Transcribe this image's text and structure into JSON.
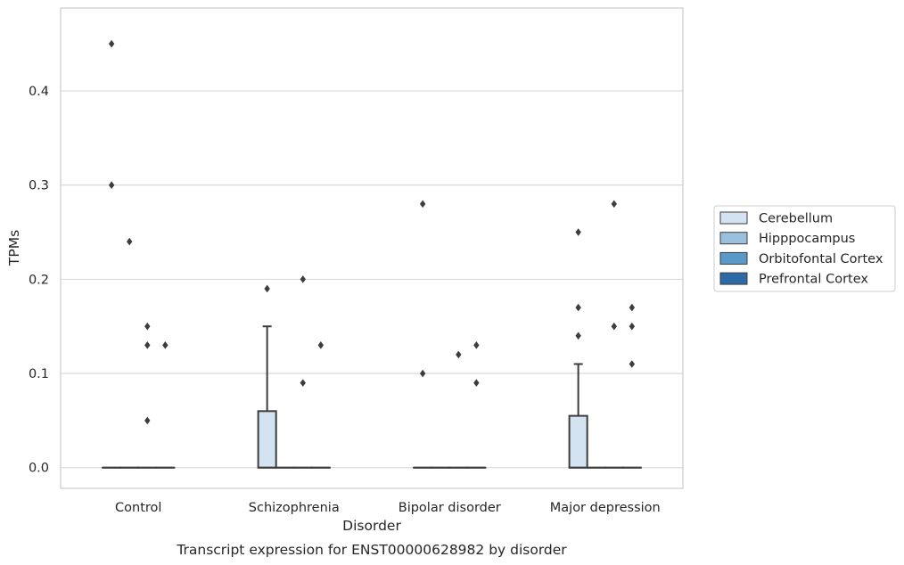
{
  "chart_data": {
    "type": "box",
    "xlabel": "Disorder",
    "ylabel": "TPMs",
    "caption": "Transcript expression for ENST00000628982 by disorder",
    "categories": [
      "Control",
      "Schizophrenia",
      "Bipolar disorder",
      "Major depression"
    ],
    "ylim": [
      -0.022,
      0.488
    ],
    "yticks": [
      0.0,
      0.1,
      0.2,
      0.3,
      0.4
    ],
    "ytick_labels": [
      "0.0",
      "0.1",
      "0.2",
      "0.3",
      "0.4"
    ],
    "grid": "horizontal",
    "legend_position": "center-right",
    "series": [
      {
        "name": "Cerebellum",
        "color": "#d3e3f1",
        "boxes": [
          {
            "q1": 0,
            "median": 0,
            "q3": 0,
            "whisker_low": 0,
            "whisker_high": 0,
            "outliers": [
              0.45,
              0.3
            ]
          },
          {
            "q1": 0,
            "median": 0,
            "q3": 0.06,
            "whisker_low": 0,
            "whisker_high": 0.15,
            "outliers": [
              0.19
            ]
          },
          {
            "q1": 0,
            "median": 0,
            "q3": 0,
            "whisker_low": 0,
            "whisker_high": 0,
            "outliers": [
              0.28,
              0.1
            ]
          },
          {
            "q1": 0,
            "median": 0,
            "q3": 0.055,
            "whisker_low": 0,
            "whisker_high": 0.11,
            "outliers": [
              0.25,
              0.17,
              0.14
            ]
          }
        ]
      },
      {
        "name": "Hipppocampus",
        "color": "#9ac0de",
        "boxes": [
          {
            "q1": 0,
            "median": 0,
            "q3": 0,
            "whisker_low": 0,
            "whisker_high": 0,
            "outliers": [
              0.24
            ]
          },
          {
            "q1": 0,
            "median": 0,
            "q3": 0,
            "whisker_low": 0,
            "whisker_high": 0,
            "outliers": []
          },
          {
            "q1": 0,
            "median": 0,
            "q3": 0,
            "whisker_low": 0,
            "whisker_high": 0,
            "outliers": []
          },
          {
            "q1": 0,
            "median": 0,
            "q3": 0,
            "whisker_low": 0,
            "whisker_high": 0,
            "outliers": []
          }
        ]
      },
      {
        "name": "Orbitofontal Cortex",
        "color": "#5a9ac8",
        "boxes": [
          {
            "q1": 0,
            "median": 0,
            "q3": 0,
            "whisker_low": 0,
            "whisker_high": 0,
            "outliers": [
              0.15,
              0.13,
              0.05
            ]
          },
          {
            "q1": 0,
            "median": 0,
            "q3": 0,
            "whisker_low": 0,
            "whisker_high": 0,
            "outliers": [
              0.2,
              0.09
            ]
          },
          {
            "q1": 0,
            "median": 0,
            "q3": 0,
            "whisker_low": 0,
            "whisker_high": 0,
            "outliers": [
              0.12
            ]
          },
          {
            "q1": 0,
            "median": 0,
            "q3": 0,
            "whisker_low": 0,
            "whisker_high": 0,
            "outliers": [
              0.28,
              0.15
            ]
          }
        ]
      },
      {
        "name": "Prefrontal Cortex",
        "color": "#2b6aa5",
        "boxes": [
          {
            "q1": 0,
            "median": 0,
            "q3": 0,
            "whisker_low": 0,
            "whisker_high": 0,
            "outliers": [
              0.13
            ]
          },
          {
            "q1": 0,
            "median": 0,
            "q3": 0,
            "whisker_low": 0,
            "whisker_high": 0,
            "outliers": [
              0.13
            ]
          },
          {
            "q1": 0,
            "median": 0,
            "q3": 0,
            "whisker_low": 0,
            "whisker_high": 0,
            "outliers": [
              0.13,
              0.09
            ]
          },
          {
            "q1": 0,
            "median": 0,
            "q3": 0,
            "whisker_low": 0,
            "whisker_high": 0,
            "outliers": [
              0.17,
              0.15,
              0.11
            ]
          }
        ]
      }
    ]
  }
}
